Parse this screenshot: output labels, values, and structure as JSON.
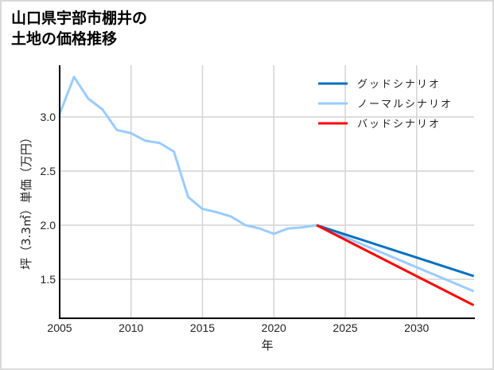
{
  "title": {
    "line1": "山口県宇部市棚井の",
    "line2": "土地の価格推移"
  },
  "colors": {
    "good": "#0070C0",
    "normal": "#99CCFF",
    "bad": "#FF0000",
    "grid": "#d3d3d3",
    "border": "#d9d9d9"
  },
  "chart_data": {
    "type": "line",
    "title": "山口県宇部市棚井の土地の価格推移",
    "xlabel": "年",
    "ylabel": "坪（3.3㎡）単価（万円）",
    "xlim": [
      2005,
      2034
    ],
    "ylim": [
      1.14,
      3.47
    ],
    "grid": true,
    "legend_position": "upper right",
    "x_ticks": [
      "2005",
      "2010",
      "2015",
      "2020",
      "2025",
      "2030"
    ],
    "y_ticks": [
      "1.5",
      "2.0",
      "2.5",
      "3.0"
    ],
    "series": [
      {
        "name": "ノーマルシナリオ",
        "role": "history+normal",
        "color": "#99CCFF",
        "x": [
          2005,
          2006,
          2007,
          2008,
          2009,
          2010,
          2011,
          2012,
          2013,
          2014,
          2015,
          2016,
          2017,
          2018,
          2019,
          2020,
          2021,
          2022,
          2023,
          2034
        ],
        "values": [
          3.03,
          3.37,
          3.17,
          3.07,
          2.88,
          2.85,
          2.78,
          2.76,
          2.68,
          2.26,
          2.15,
          2.12,
          2.08,
          2.0,
          1.97,
          1.92,
          1.97,
          1.98,
          2.0,
          1.39
        ]
      },
      {
        "name": "グッドシナリオ",
        "color": "#0070C0",
        "x": [
          2023,
          2034
        ],
        "values": [
          2.0,
          1.53
        ]
      },
      {
        "name": "バッドシナリオ",
        "color": "#FF0000",
        "x": [
          2023,
          2034
        ],
        "values": [
          2.0,
          1.26
        ]
      }
    ]
  },
  "legend": [
    {
      "label": "グッドシナリオ",
      "color": "#0070C0"
    },
    {
      "label": "ノーマルシナリオ",
      "color": "#99CCFF"
    },
    {
      "label": "バッドシナリオ",
      "color": "#FF0000"
    }
  ],
  "axes": {
    "x_label": "年",
    "y_label": "坪（3.3㎡）単価（万円）",
    "x_ticks": [
      "2005",
      "2010",
      "2015",
      "2020",
      "2025",
      "2030"
    ],
    "y_ticks": [
      "1.5",
      "2.0",
      "2.5",
      "3.0"
    ]
  }
}
